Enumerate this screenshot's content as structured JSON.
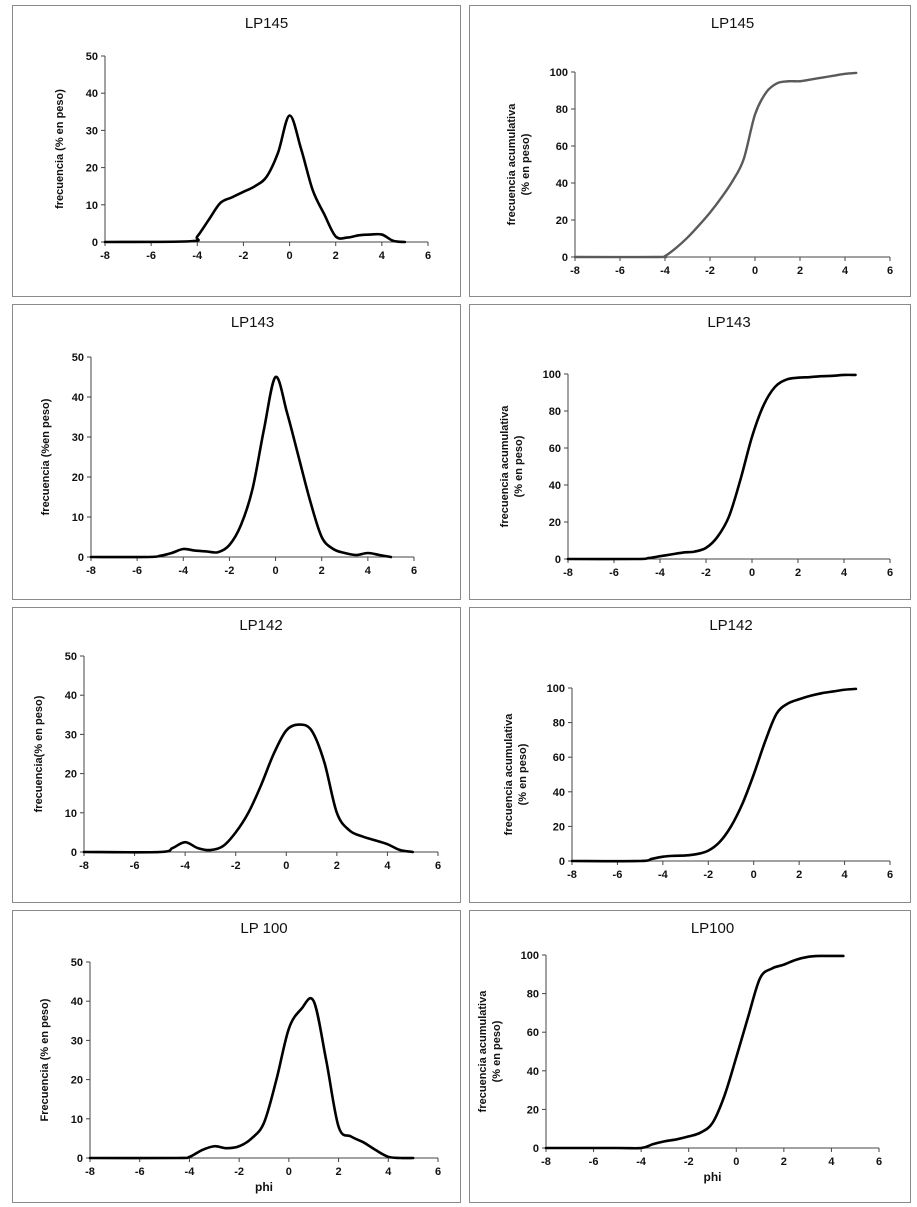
{
  "chart_data": [
    {
      "id": "p1",
      "type": "line",
      "title": "LP145",
      "ylabel": [
        "frecuencia (% en peso)"
      ],
      "xlabel": "",
      "xlim": [
        -8,
        6
      ],
      "ylim": [
        0,
        50
      ],
      "xticks": [
        -8,
        -6,
        -4,
        -2,
        0,
        2,
        4,
        6
      ],
      "yticks": [
        0,
        10,
        20,
        30,
        40,
        50
      ],
      "series": [
        {
          "x": [
            -8,
            -4.3,
            -4,
            -3.5,
            -3,
            -2.5,
            -2,
            -1.5,
            -1,
            -0.5,
            0,
            0.5,
            1,
            1.5,
            2,
            2.5,
            3,
            3.5,
            4,
            4.5,
            5
          ],
          "y": [
            0,
            0.2,
            1.5,
            6,
            10.5,
            12,
            13.5,
            15,
            17.5,
            24,
            34,
            25,
            14,
            7.5,
            1.5,
            1.2,
            1.8,
            2,
            2,
            0.3,
            0
          ]
        }
      ]
    },
    {
      "id": "p2",
      "type": "line",
      "title": "LP145",
      "color": "#5a5a5a",
      "ylabel": [
        "frecuencia acumulativa",
        "(% en peso)"
      ],
      "xlabel": "",
      "xlim": [
        -8,
        6
      ],
      "ylim": [
        0,
        100
      ],
      "xticks": [
        -8,
        -6,
        -4,
        -2,
        0,
        2,
        4,
        6
      ],
      "yticks": [
        0,
        20,
        40,
        60,
        80,
        100
      ],
      "series": [
        {
          "x": [
            -8,
            -4.3,
            -4,
            -3.5,
            -3,
            -2.5,
            -2,
            -1.5,
            -1,
            -0.5,
            0,
            0.5,
            1,
            1.5,
            2,
            2.5,
            3,
            3.5,
            4,
            4.5
          ],
          "y": [
            0,
            0,
            0.5,
            5,
            10.5,
            17,
            24,
            32,
            41,
            53,
            77,
            89,
            94,
            95,
            95,
            96,
            97,
            98,
            99,
            99.5
          ]
        }
      ]
    },
    {
      "id": "p3",
      "type": "line",
      "title": "LP143",
      "ylabel": [
        "frecuencia (%en peso)"
      ],
      "xlabel": "",
      "xlim": [
        -8,
        6
      ],
      "ylim": [
        0,
        50
      ],
      "xticks": [
        -8,
        -6,
        -4,
        -2,
        0,
        2,
        4,
        6
      ],
      "yticks": [
        0,
        10,
        20,
        30,
        40,
        50
      ],
      "series": [
        {
          "x": [
            -8,
            -5.5,
            -5,
            -4.5,
            -4,
            -3.5,
            -3,
            -2.5,
            -2,
            -1.5,
            -1,
            -0.5,
            0,
            0.5,
            1,
            1.5,
            2,
            2.5,
            3,
            3.5,
            4,
            4.5,
            5
          ],
          "y": [
            0,
            0,
            0.3,
            1,
            2,
            1.6,
            1.4,
            1.2,
            3,
            8,
            17,
            32,
            45,
            36,
            25,
            14,
            5,
            2,
            1,
            0.5,
            1,
            0.5,
            0
          ]
        }
      ]
    },
    {
      "id": "p4",
      "type": "line",
      "title": "LP143",
      "ylabel": [
        "frecuencia acumulativa",
        "(% en peso)"
      ],
      "xlabel": "",
      "xlim": [
        -8,
        6
      ],
      "ylim": [
        0,
        100
      ],
      "xticks": [
        -8,
        -6,
        -4,
        -2,
        0,
        2,
        4,
        6
      ],
      "yticks": [
        0,
        20,
        40,
        60,
        80,
        100
      ],
      "series": [
        {
          "x": [
            -8,
            -5,
            -4.5,
            -4,
            -3.5,
            -3,
            -2.5,
            -2,
            -1.5,
            -1,
            -0.5,
            0,
            0.5,
            1,
            1.5,
            2,
            2.5,
            3,
            3.5,
            4,
            4.5
          ],
          "y": [
            0,
            0,
            0.5,
            1.5,
            2.5,
            3.5,
            4,
            6,
            12,
            23,
            43,
            66,
            83,
            93,
            97,
            98,
            98.3,
            98.8,
            99,
            99.5,
            99.5
          ]
        }
      ]
    },
    {
      "id": "p5",
      "type": "line",
      "title": "LP142",
      "ylabel": [
        "frecuencia(% en peso)"
      ],
      "xlabel": "",
      "xlim": [
        -8,
        6
      ],
      "ylim": [
        0,
        50
      ],
      "xticks": [
        -8,
        -6,
        -4,
        -2,
        0,
        2,
        4,
        6
      ],
      "yticks": [
        0,
        10,
        20,
        30,
        40,
        50
      ],
      "series": [
        {
          "x": [
            -8,
            -5,
            -4.5,
            -4,
            -3.5,
            -3,
            -2.5,
            -2,
            -1.5,
            -1,
            -0.5,
            0,
            0.5,
            1,
            1.5,
            2,
            2.5,
            3,
            3.5,
            4,
            4.5,
            5
          ],
          "y": [
            0,
            0,
            1,
            2.5,
            1,
            0.5,
            1.5,
            5,
            10,
            17,
            25,
            31,
            32.5,
            31,
            23,
            10,
            5.5,
            4,
            3,
            2,
            0.5,
            0
          ]
        }
      ]
    },
    {
      "id": "p6",
      "type": "line",
      "title": "LP142",
      "ylabel": [
        "frecuencia acumulativa",
        "(% en peso)"
      ],
      "xlabel": "",
      "xlim": [
        -8,
        6
      ],
      "ylim": [
        0,
        100
      ],
      "xticks": [
        -8,
        -6,
        -4,
        -2,
        0,
        2,
        4,
        6
      ],
      "yticks": [
        0,
        20,
        40,
        60,
        80,
        100
      ],
      "series": [
        {
          "x": [
            -8,
            -5,
            -4.5,
            -4,
            -3.5,
            -3,
            -2.5,
            -2,
            -1.5,
            -1,
            -0.5,
            0,
            0.5,
            1,
            1.5,
            2,
            2.5,
            3,
            3.5,
            4,
            4.5
          ],
          "y": [
            0,
            0,
            1.2,
            2.5,
            3,
            3.2,
            4,
            6,
            11,
            20,
            33,
            50,
            69,
            85,
            91,
            93.5,
            95.5,
            97,
            98,
            99,
            99.5
          ]
        }
      ]
    },
    {
      "id": "p7",
      "type": "line",
      "title": "LP 100",
      "ylabel": [
        "Frecuencia (% en peso)"
      ],
      "xlabel": "phi",
      "xlim": [
        -8,
        6
      ],
      "ylim": [
        0,
        50
      ],
      "xticks": [
        -8,
        -6,
        -4,
        -2,
        0,
        2,
        4,
        6
      ],
      "yticks": [
        0,
        10,
        20,
        30,
        40,
        50
      ],
      "series": [
        {
          "x": [
            -8,
            -4.5,
            -4,
            -3.5,
            -3,
            -2.5,
            -2,
            -1.5,
            -1,
            -0.5,
            0,
            0.5,
            1,
            1.5,
            2,
            2.5,
            3,
            3.5,
            4,
            4.5,
            5
          ],
          "y": [
            0,
            0,
            0.3,
            2,
            3,
            2.5,
            3,
            5,
            9,
            20,
            33,
            38,
            40,
            25,
            8,
            5.5,
            4,
            2,
            0.3,
            0,
            0
          ]
        }
      ]
    },
    {
      "id": "p8",
      "type": "line",
      "title": "LP100",
      "ylabel": [
        "frecuencia  acumulativa",
        "(% en peso)"
      ],
      "xlabel": "phi",
      "xlim": [
        -8,
        6
      ],
      "ylim": [
        0,
        100
      ],
      "xticks": [
        -8,
        -6,
        -4,
        -2,
        0,
        2,
        4,
        6
      ],
      "yticks": [
        0,
        20,
        40,
        60,
        80,
        100
      ],
      "series": [
        {
          "x": [
            -8,
            -5,
            -4,
            -3.5,
            -3,
            -2.5,
            -2,
            -1.5,
            -1,
            -0.5,
            0,
            0.5,
            1,
            1.5,
            2,
            2.5,
            3,
            3.5,
            4,
            4.5
          ],
          "y": [
            0,
            0,
            0,
            2,
            3.5,
            4.5,
            6,
            8,
            13,
            27,
            47,
            68,
            88,
            93,
            95,
            97.5,
            99,
            99.5,
            99.5,
            99.5
          ]
        }
      ]
    }
  ]
}
